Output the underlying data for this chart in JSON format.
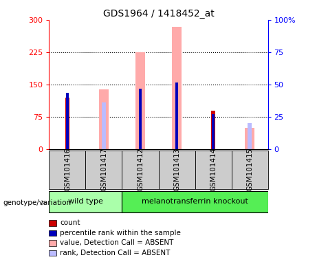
{
  "title": "GDS1964 / 1418452_at",
  "samples": [
    "GSM101416",
    "GSM101417",
    "GSM101412",
    "GSM101413",
    "GSM101414",
    "GSM101415"
  ],
  "count_values": [
    120,
    0,
    0,
    0,
    90,
    0
  ],
  "percentile_rank_values": [
    130,
    0,
    140,
    155,
    82,
    0
  ],
  "absent_value_values": [
    0,
    138,
    225,
    283,
    0,
    50
  ],
  "absent_rank_values": [
    0,
    108,
    0,
    0,
    0,
    60
  ],
  "left_ylim": [
    0,
    300
  ],
  "right_ylim": [
    0,
    100
  ],
  "left_yticks": [
    0,
    75,
    150,
    225,
    300
  ],
  "right_yticks": [
    0,
    25,
    50,
    75,
    100
  ],
  "right_yticklabels": [
    "0",
    "25",
    "50",
    "75",
    "100%"
  ],
  "color_count": "#cc0000",
  "color_percentile": "#0000bb",
  "color_absent_value": "#ffaaaa",
  "color_absent_rank": "#bbbbff",
  "color_wildtype_bg": "#aaffaa",
  "color_knockout_bg": "#55ee55",
  "wt_samples": [
    0,
    1
  ],
  "ko_samples": [
    2,
    3,
    4,
    5
  ],
  "legend_items": [
    [
      "count",
      "#cc0000"
    ],
    [
      "percentile rank within the sample",
      "#0000bb"
    ],
    [
      "value, Detection Call = ABSENT",
      "#ffaaaa"
    ],
    [
      "rank, Detection Call = ABSENT",
      "#bbbbff"
    ]
  ]
}
